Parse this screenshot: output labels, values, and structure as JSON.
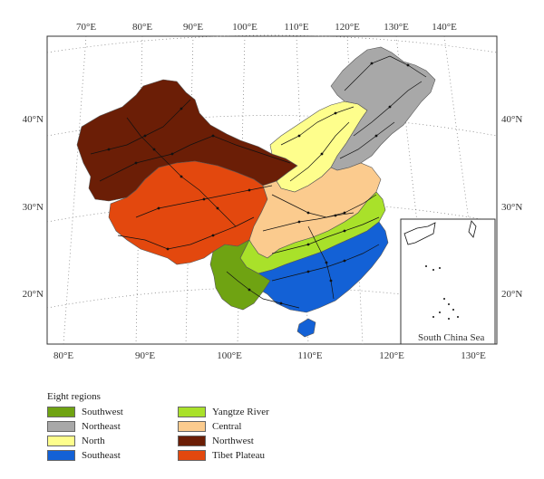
{
  "lon_top_labels": [
    "70°E",
    "80°E",
    "90°E",
    "100°E",
    "110°E",
    "120°E",
    "130°E",
    "140°E"
  ],
  "lon_bottom_labels": [
    "80°E",
    "90°E",
    "100°E",
    "110°E",
    "120°E",
    "130°E"
  ],
  "lat_left_labels": [
    "40°N",
    "30°N",
    "20°N"
  ],
  "lat_right_labels": [
    "40°N",
    "30°N",
    "20°N"
  ],
  "inset_label": "South China Sea",
  "legend": {
    "title": "Eight regions",
    "items": [
      {
        "label": "Southwest",
        "color": "#6fa312"
      },
      {
        "label": "Northeast",
        "color": "#a8a8a8"
      },
      {
        "label": "North",
        "color": "#fefe8c"
      },
      {
        "label": "Southeast",
        "color": "#1361d6"
      },
      {
        "label": "Yangtze River",
        "color": "#a9e12a"
      },
      {
        "label": "Central",
        "color": "#fbcb8e"
      },
      {
        "label": "Northwest",
        "color": "#6b1e06"
      },
      {
        "label": "Tibet Plateau",
        "color": "#e3480e"
      }
    ]
  }
}
